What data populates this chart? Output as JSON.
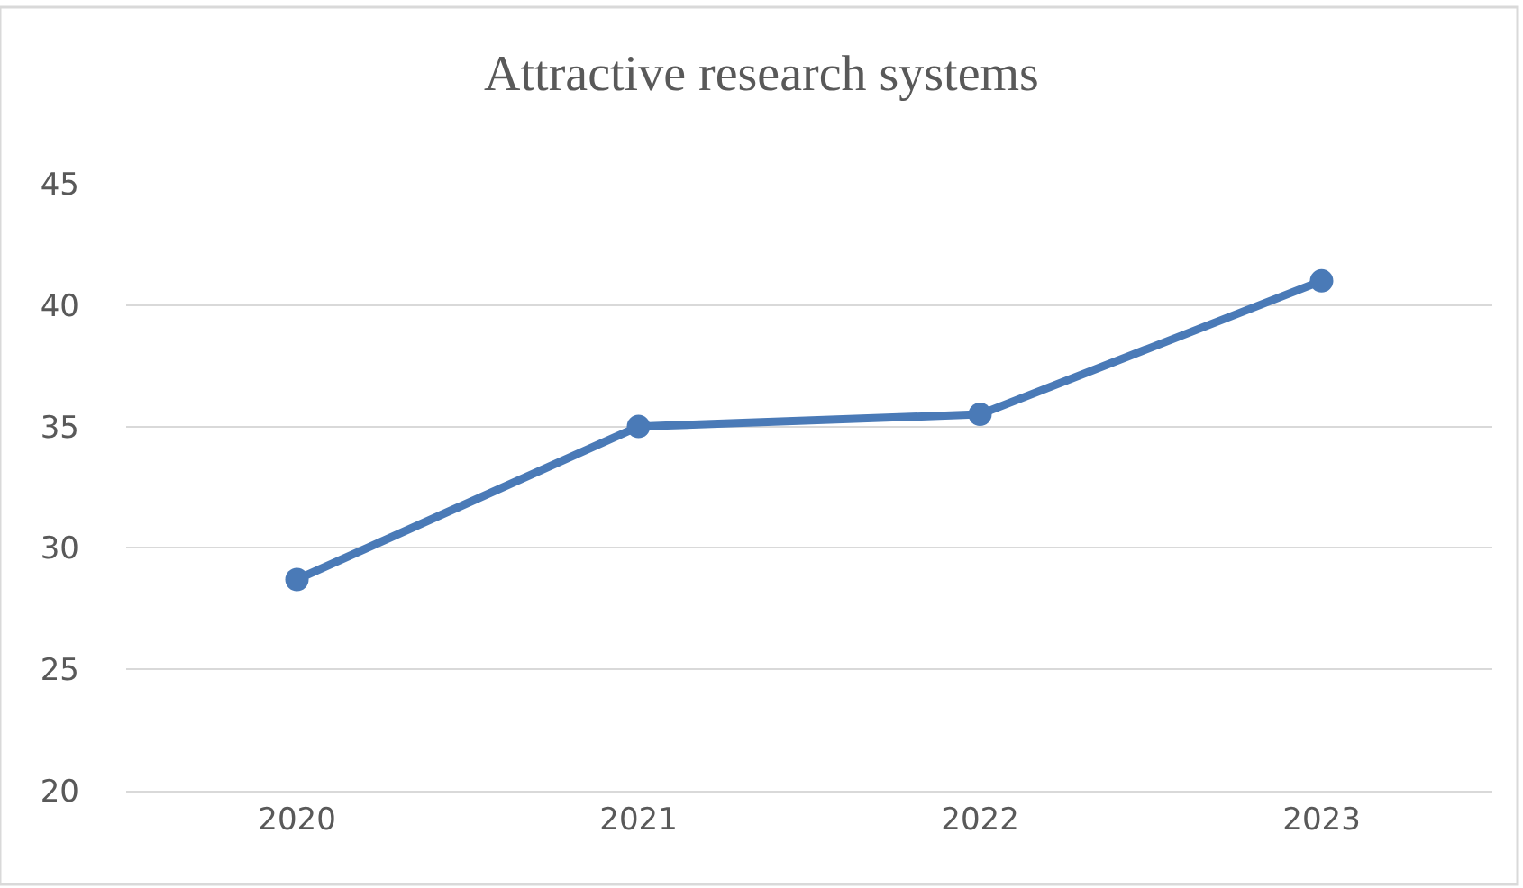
{
  "chart_data": {
    "type": "line",
    "title": "Attractive research systems",
    "categories": [
      "2020",
      "2021",
      "2022",
      "2023"
    ],
    "series": [
      {
        "color": "#4a7ab7",
        "values": [
          28.7,
          35.0,
          35.5,
          41.0
        ]
      }
    ],
    "ylim": [
      20,
      45
    ],
    "yticks": [
      20,
      25,
      30,
      35,
      40,
      45
    ],
    "grid": "y",
    "legend": false,
    "marker": "circle",
    "line_style": "solid"
  }
}
